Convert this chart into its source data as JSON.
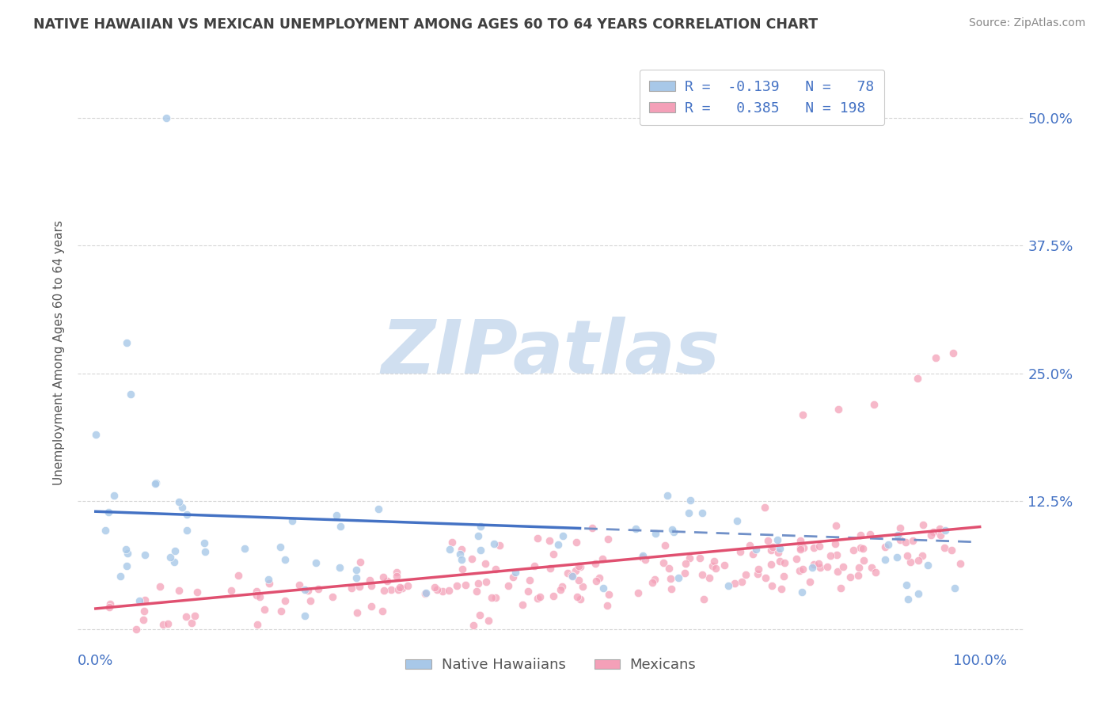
{
  "title": "NATIVE HAWAIIAN VS MEXICAN UNEMPLOYMENT AMONG AGES 60 TO 64 YEARS CORRELATION CHART",
  "source": "Source: ZipAtlas.com",
  "ylabel": "Unemployment Among Ages 60 to 64 years",
  "xlim": [
    -0.02,
    1.05
  ],
  "ylim": [
    -0.02,
    0.56
  ],
  "yticks": [
    0.0,
    0.125,
    0.25,
    0.375,
    0.5
  ],
  "ytick_labels": [
    "",
    "12.5%",
    "25.0%",
    "37.5%",
    "50.0%"
  ],
  "xtick_labels": [
    "0.0%",
    "100.0%"
  ],
  "xticks": [
    0.0,
    1.0
  ],
  "r_hawaiian": -0.139,
  "n_hawaiian": 78,
  "r_mexican": 0.385,
  "n_mexican": 198,
  "color_hawaiian": "#a8c8e8",
  "color_mexican": "#f4a0b8",
  "line_color_hawaiian": "#4472c4",
  "line_color_mexican": "#e05070",
  "line_color_hawaiian_dash": "#7090c8",
  "background_color": "#ffffff",
  "grid_color": "#cccccc",
  "title_color": "#404040",
  "label_color": "#4472c4",
  "legend_text_color": "#4472c4",
  "watermark_text": "ZIPatlas",
  "watermark_color": "#d0dff0",
  "source_color": "#888888",
  "ylabel_color": "#555555",
  "bottom_legend_color": "#555555"
}
